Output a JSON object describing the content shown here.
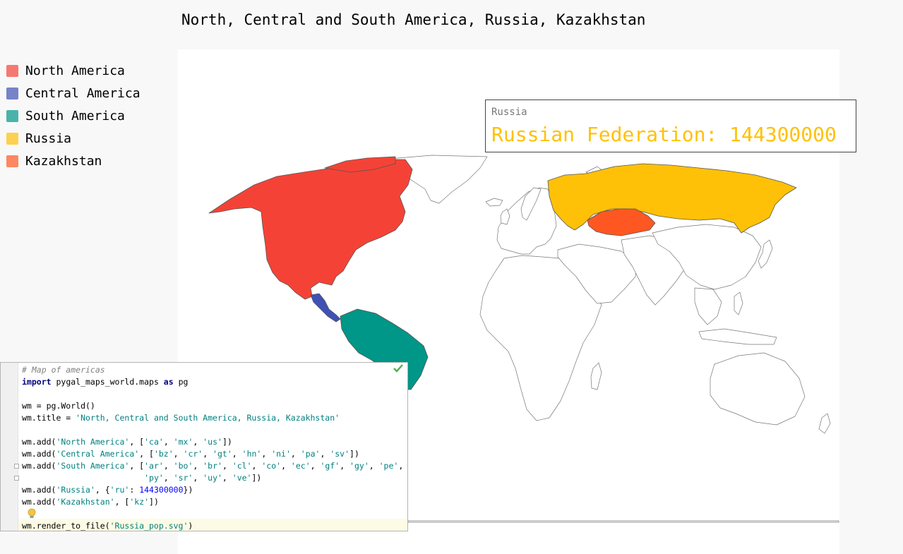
{
  "map": {
    "title": "North, Central and South America, Russia, Kazakhstan",
    "legend": [
      {
        "label": "North America",
        "color": "#f44336"
      },
      {
        "label": "Central America",
        "color": "#3f51b5"
      },
      {
        "label": "South America",
        "color": "#009688"
      },
      {
        "label": "Russia",
        "color": "#ffc107"
      },
      {
        "label": "Kazakhstan",
        "color": "#ff5722"
      }
    ],
    "tooltip": {
      "title": "Russia",
      "value": "Russian Federation: 144300000",
      "color": "#ffc107"
    }
  },
  "editor": {
    "lines": [
      {
        "spans": [
          {
            "t": "cmt",
            "v": "# Map of americas"
          }
        ]
      },
      {
        "spans": [
          {
            "t": "kw",
            "v": "import"
          },
          {
            "t": "",
            "v": " pygal_maps_world.maps "
          },
          {
            "t": "kw",
            "v": "as"
          },
          {
            "t": "",
            "v": " pg"
          }
        ]
      },
      {
        "spans": []
      },
      {
        "spans": [
          {
            "t": "",
            "v": "wm = pg.World()"
          }
        ]
      },
      {
        "spans": [
          {
            "t": "",
            "v": "wm.title = "
          },
          {
            "t": "str",
            "v": "'North, Central and South America, Russia, Kazakhstan'"
          }
        ]
      },
      {
        "spans": []
      },
      {
        "spans": [
          {
            "t": "",
            "v": "wm.add("
          },
          {
            "t": "str",
            "v": "'North America'"
          },
          {
            "t": "",
            "v": ", ["
          },
          {
            "t": "str",
            "v": "'ca'"
          },
          {
            "t": "",
            "v": ", "
          },
          {
            "t": "str",
            "v": "'mx'"
          },
          {
            "t": "",
            "v": ", "
          },
          {
            "t": "str",
            "v": "'us'"
          },
          {
            "t": "",
            "v": "])"
          }
        ]
      },
      {
        "spans": [
          {
            "t": "",
            "v": "wm.add("
          },
          {
            "t": "str",
            "v": "'Central America'"
          },
          {
            "t": "",
            "v": ", ["
          },
          {
            "t": "str",
            "v": "'bz'"
          },
          {
            "t": "",
            "v": ", "
          },
          {
            "t": "str",
            "v": "'cr'"
          },
          {
            "t": "",
            "v": ", "
          },
          {
            "t": "str",
            "v": "'gt'"
          },
          {
            "t": "",
            "v": ", "
          },
          {
            "t": "str",
            "v": "'hn'"
          },
          {
            "t": "",
            "v": ", "
          },
          {
            "t": "str",
            "v": "'ni'"
          },
          {
            "t": "",
            "v": ", "
          },
          {
            "t": "str",
            "v": "'pa'"
          },
          {
            "t": "",
            "v": ", "
          },
          {
            "t": "str",
            "v": "'sv'"
          },
          {
            "t": "",
            "v": "])"
          }
        ]
      },
      {
        "spans": [
          {
            "t": "",
            "v": "wm.add("
          },
          {
            "t": "str",
            "v": "'South America'"
          },
          {
            "t": "",
            "v": ", ["
          },
          {
            "t": "str",
            "v": "'ar'"
          },
          {
            "t": "",
            "v": ", "
          },
          {
            "t": "str",
            "v": "'bo'"
          },
          {
            "t": "",
            "v": ", "
          },
          {
            "t": "str",
            "v": "'br'"
          },
          {
            "t": "",
            "v": ", "
          },
          {
            "t": "str",
            "v": "'cl'"
          },
          {
            "t": "",
            "v": ", "
          },
          {
            "t": "str",
            "v": "'co'"
          },
          {
            "t": "",
            "v": ", "
          },
          {
            "t": "str",
            "v": "'ec'"
          },
          {
            "t": "",
            "v": ", "
          },
          {
            "t": "str",
            "v": "'gf'"
          },
          {
            "t": "",
            "v": ", "
          },
          {
            "t": "str",
            "v": "'gy'"
          },
          {
            "t": "",
            "v": ", "
          },
          {
            "t": "str",
            "v": "'pe'"
          },
          {
            "t": "",
            "v": ","
          }
        ]
      },
      {
        "spans": [
          {
            "t": "",
            "v": "                         "
          },
          {
            "t": "str",
            "v": "'py'"
          },
          {
            "t": "",
            "v": ", "
          },
          {
            "t": "str",
            "v": "'sr'"
          },
          {
            "t": "",
            "v": ", "
          },
          {
            "t": "str",
            "v": "'uy'"
          },
          {
            "t": "",
            "v": ", "
          },
          {
            "t": "str",
            "v": "'ve'"
          },
          {
            "t": "",
            "v": "])"
          }
        ]
      },
      {
        "spans": [
          {
            "t": "",
            "v": "wm.add("
          },
          {
            "t": "str",
            "v": "'Russia'"
          },
          {
            "t": "",
            "v": ", {"
          },
          {
            "t": "str",
            "v": "'ru'"
          },
          {
            "t": "",
            "v": ": "
          },
          {
            "t": "num",
            "v": "144300000"
          },
          {
            "t": "",
            "v": "})"
          }
        ]
      },
      {
        "spans": [
          {
            "t": "",
            "v": "wm.add("
          },
          {
            "t": "str",
            "v": "'Kazakhstan'"
          },
          {
            "t": "",
            "v": ", ["
          },
          {
            "t": "str",
            "v": "'kz'"
          },
          {
            "t": "",
            "v": "])"
          }
        ]
      },
      {
        "spans": []
      },
      {
        "spans": [
          {
            "t": "",
            "v": "wm.render_to_file("
          },
          {
            "t": "str",
            "v": "'Russia_pop.svg'"
          },
          {
            "t": "",
            "v": ")"
          }
        ]
      }
    ]
  }
}
